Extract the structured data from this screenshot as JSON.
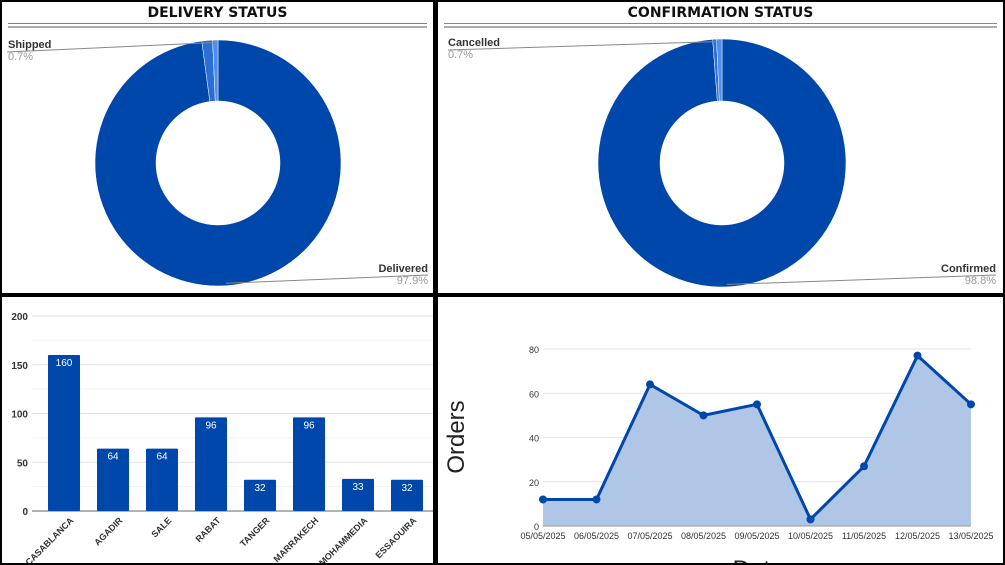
{
  "chart_data": [
    {
      "type": "pie",
      "title": "DELIVERY STATUS",
      "donut": true,
      "slices": [
        {
          "label": "Delivered",
          "value": 97.9,
          "pct_label": "97.9%",
          "color": "#0047ab",
          "labeled": true
        },
        {
          "label": "",
          "value": 1.4,
          "pct_label": "",
          "color": "#2b6fd6",
          "labeled": false
        },
        {
          "label": "Shipped",
          "value": 0.7,
          "pct_label": "0.7%",
          "color": "#4d8ff0",
          "labeled": true
        }
      ]
    },
    {
      "type": "pie",
      "title": "CONFIRMATION STATUS",
      "donut": true,
      "slices": [
        {
          "label": "Confirmed",
          "value": 98.8,
          "pct_label": "98.8%",
          "color": "#0047ab",
          "labeled": true
        },
        {
          "label": "",
          "value": 0.5,
          "pct_label": "",
          "color": "#2b6fd6",
          "labeled": false
        },
        {
          "label": "Cancelled",
          "value": 0.7,
          "pct_label": "0.7%",
          "color": "#4d8ff0",
          "labeled": true
        }
      ]
    },
    {
      "type": "bar",
      "title": "",
      "categories": [
        "CASABLANCA",
        "AGADIR",
        "SALE",
        "RABAT",
        "TANGER",
        "MARRAKECH",
        "MOHAMMEDIA",
        "ESSAOUIRA"
      ],
      "values": [
        160,
        64,
        64,
        96,
        32,
        96,
        33,
        32
      ],
      "ylim": [
        0,
        200
      ],
      "yticks": [
        0,
        50,
        100,
        150,
        200
      ],
      "color": "#0047ab",
      "data_labels": true
    },
    {
      "type": "area",
      "title": "",
      "xlabel": "Date",
      "ylabel": "Orders",
      "x": [
        "05/05/2025",
        "06/05/2025",
        "07/05/2025",
        "08/05/2025",
        "09/05/2025",
        "10/05/2025",
        "11/05/2025",
        "12/05/2025",
        "13/05/2025"
      ],
      "values": [
        12,
        12,
        64,
        50,
        55,
        3,
        27,
        77,
        55
      ],
      "ylim": [
        0,
        80
      ],
      "yticks": [
        0,
        20,
        40,
        60,
        80
      ],
      "color": "#0047ab",
      "fill": "#b0c6e6"
    }
  ]
}
